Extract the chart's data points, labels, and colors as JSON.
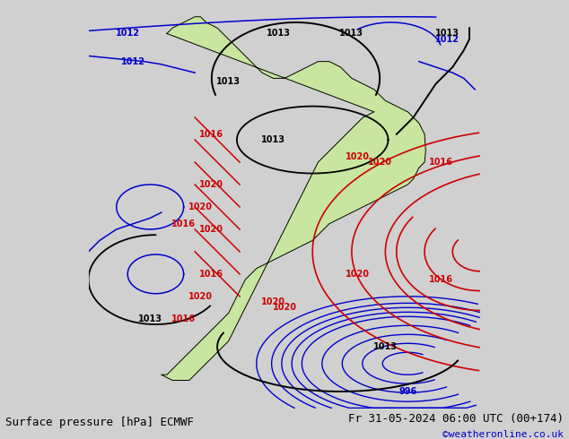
{
  "title_left": "Surface pressure [hPa] ECMWF",
  "title_right": "Fr 31-05-2024 06:00 UTC (00+174)",
  "credit": "©weatheronline.co.uk",
  "bg_color": "#d0d0d0",
  "land_color": "#c8e6a0",
  "ocean_color": "#e0e0e0",
  "coastline_color": "#000000",
  "border_color": "#aaaaaa",
  "isobar_red_color": "#cc0000",
  "isobar_blue_color": "#0000cc",
  "isobar_black_color": "#000000",
  "credit_color": "#0000cc",
  "bottom_bar_color": "#c0c0c0",
  "figsize": [
    6.34,
    4.9
  ],
  "dpi": 100
}
